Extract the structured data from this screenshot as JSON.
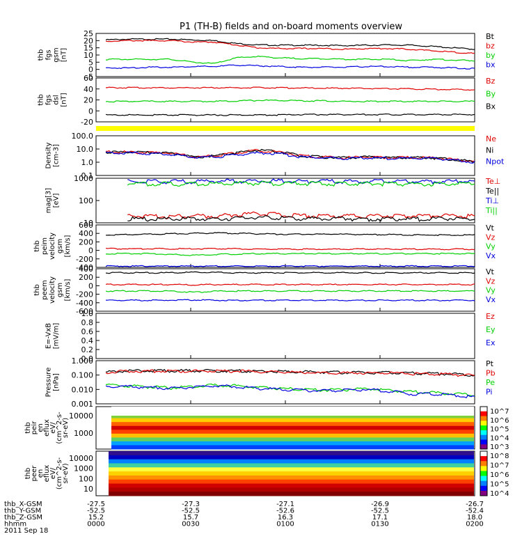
{
  "title": "P1 (TH-B) fields and on-board moments overview",
  "colors": {
    "black": "#000000",
    "red": "#e00000",
    "green": "#00d000",
    "blue": "#0000e0",
    "yellow": "#ffff00"
  },
  "chart_data": {
    "type": "line",
    "x_ticks": [
      "0000",
      "0030",
      "0100",
      "0130",
      "0200"
    ],
    "panels": [
      {
        "id": "fgs-gsm",
        "ylabel": [
          "thb",
          "fgs",
          "gsm",
          "[nT]"
        ],
        "yticks": [
          "25",
          "20",
          "15",
          "10",
          "5",
          "0",
          "-5"
        ],
        "ylim": [
          -5,
          25
        ],
        "series": [
          {
            "name": "Bt",
            "color": "black",
            "values": [
              20.5,
              21,
              21,
              21,
              20.5,
              20,
              18,
              17,
              16.8,
              16.8,
              16.7,
              16.5,
              16.8,
              17,
              16.8,
              16,
              15,
              14
            ]
          },
          {
            "name": "bz",
            "color": "red",
            "values": [
              19.5,
              20,
              20,
              20,
              19,
              19,
              17,
              15,
              14.5,
              14.5,
              14.5,
              14,
              14.5,
              14.5,
              14,
              13,
              12,
              11
            ]
          },
          {
            "name": "by",
            "color": "green",
            "values": [
              7,
              7,
              7,
              7,
              5,
              4,
              8,
              9,
              8,
              7.5,
              7.5,
              7,
              7,
              7,
              6,
              7,
              6.5,
              6
            ]
          },
          {
            "name": "bx",
            "color": "blue",
            "values": [
              1,
              1,
              1.5,
              1.5,
              2,
              2,
              3,
              2.5,
              2,
              1.5,
              1.5,
              1.5,
              2,
              2,
              1.5,
              1.5,
              1,
              0.5
            ]
          }
        ]
      },
      {
        "id": "fgs-dsl",
        "ylabel": [
          "thb",
          "fgs",
          "dsl",
          "[nT]"
        ],
        "yticks": [
          "60",
          "40",
          "20",
          "0",
          "-20"
        ],
        "ylim": [
          -30,
          60
        ],
        "series": [
          {
            "name": "Bz",
            "color": "red",
            "values": [
              40,
              40,
              40,
              40,
              40,
              40,
              40,
              40,
              40,
              39.5,
              39,
              39,
              38.5,
              38,
              37.5,
              37,
              36.5,
              36
            ]
          },
          {
            "name": "By",
            "color": "green",
            "values": [
              12,
              12,
              12,
              12,
              12,
              12,
              13,
              14,
              14,
              13,
              13,
              12,
              12,
              12,
              12,
              12,
              12,
              12
            ]
          },
          {
            "name": "Bx",
            "color": "black",
            "values": [
              -16,
              -16,
              -16,
              -16,
              -16,
              -16,
              -16,
              -16,
              -16,
              -15,
              -15,
              -15,
              -15,
              -15,
              -15,
              -15,
              -15,
              -15
            ]
          }
        ]
      },
      {
        "id": "density",
        "ylabel": [
          "Density",
          "[cm-3]"
        ],
        "yticks": [
          "100.0",
          "10.0",
          "1.0",
          "0.1"
        ],
        "ylim": [
          0.1,
          100
        ],
        "log": true,
        "series": [
          {
            "name": "Ne",
            "color": "red",
            "values": [
              6,
              6,
              5.5,
              5,
              2.5,
              3,
              5,
              8,
              6,
              3,
              2.5,
              2.2,
              2.5,
              2.2,
              2.3,
              2.2,
              1.6,
              1.1
            ]
          },
          {
            "name": "Ni",
            "color": "black",
            "values": [
              6,
              6,
              5.5,
              5,
              2.5,
              3,
              5,
              8,
              6,
              3,
              2.5,
              2.2,
              2.5,
              2.2,
              2.3,
              2.2,
              1.6,
              1.1
            ]
          },
          {
            "name": "Npot",
            "color": "blue",
            "values": [
              5,
              5,
              4.5,
              4,
              2.5,
              2.5,
              3.5,
              5,
              4.5,
              2.5,
              2.2,
              2,
              2.2,
              2,
              2,
              2,
              1.5,
              1
            ]
          }
        ]
      },
      {
        "id": "temp",
        "ylabel": [
          "mag[3]",
          "[eV]"
        ],
        "yticks": [
          "1000",
          "100",
          "10"
        ],
        "ylim": [
          8,
          1200
        ],
        "log": true,
        "series": [
          {
            "name": "Te⊥",
            "color": "red",
            "values": [
              null,
              18,
              17,
              16,
              18,
              17,
              20,
              24,
              20,
              18,
              18,
              18,
              17,
              18,
              17,
              18,
              18,
              17
            ]
          },
          {
            "name": "Te||",
            "color": "black",
            "values": [
              null,
              13,
              12,
              12,
              13,
              12,
              14,
              15,
              14,
              13,
              13,
              13,
              12,
              13,
              12,
              13,
              13,
              12
            ]
          },
          {
            "name": "Ti⊥",
            "color": "blue",
            "values": [
              null,
              850,
              850,
              850,
              850,
              860,
              880,
              900,
              880,
              870,
              860,
              860,
              850,
              860,
              850,
              850,
              850,
              850
            ]
          },
          {
            "name": "Ti||",
            "color": "green",
            "values": [
              null,
              650,
              650,
              650,
              650,
              660,
              680,
              700,
              680,
              670,
              660,
              650,
              650,
              650,
              650,
              650,
              650,
              650
            ]
          }
        ]
      },
      {
        "id": "peim-vel",
        "ylabel": [
          "thb",
          "peim",
          "velocity",
          "gsm",
          "[km/s]"
        ],
        "yticks": [
          "600",
          "400",
          "200",
          "0",
          "-200",
          "-400"
        ],
        "ylim": [
          -400,
          650
        ],
        "series": [
          {
            "name": "Vt",
            "color": "black",
            "values": [
              400,
              410,
              420,
              430,
              440,
              450,
              440,
              430,
              420,
              420,
              420,
              420,
              410,
              410,
              400,
              400,
              400,
              400
            ]
          },
          {
            "name": "Vz",
            "color": "red",
            "values": [
              60,
              60,
              60,
              60,
              60,
              60,
              60,
              50,
              50,
              50,
              50,
              50,
              50,
              50,
              50,
              50,
              50,
              50
            ]
          },
          {
            "name": "Vy",
            "color": "green",
            "values": [
              -60,
              -60,
              -60,
              -80,
              -100,
              -80,
              -70,
              -60,
              -60,
              -60,
              -60,
              -60,
              -60,
              -60,
              -60,
              -60,
              -60,
              -60
            ]
          },
          {
            "name": "Vx",
            "color": "blue",
            "values": [
              -370,
              -370,
              -370,
              -370,
              -370,
              -370,
              -370,
              -370,
              -370,
              -370,
              -370,
              -370,
              -370,
              -370,
              -370,
              -370,
              -370,
              -370
            ]
          }
        ]
      },
      {
        "id": "peem-vel",
        "ylabel": [
          "thb",
          "peem",
          "velocity",
          "gsm",
          "[km/s]"
        ],
        "yticks": [
          "400",
          "200",
          "0",
          "-200",
          "-400",
          "-600"
        ],
        "ylim": [
          -600,
          450
        ],
        "series": [
          {
            "name": "Vt",
            "color": "black",
            "values": [
              350,
              350,
              350,
              350,
              360,
              360,
              350,
              350,
              350,
              350,
              350,
              350,
              350,
              350,
              350,
              350,
              350,
              350
            ]
          },
          {
            "name": "Vz",
            "color": "red",
            "values": [
              60,
              60,
              60,
              60,
              50,
              60,
              60,
              60,
              60,
              60,
              60,
              60,
              60,
              60,
              60,
              60,
              60,
              60
            ]
          },
          {
            "name": "Vy",
            "color": "green",
            "values": [
              -100,
              -100,
              -100,
              -100,
              -130,
              -110,
              -100,
              -100,
              -100,
              -100,
              -100,
              -100,
              -100,
              -100,
              -100,
              -100,
              -100,
              -100
            ]
          },
          {
            "name": "Vx",
            "color": "blue",
            "values": [
              -330,
              -330,
              -330,
              -330,
              -320,
              -330,
              -330,
              -330,
              -330,
              -330,
              -330,
              -330,
              -330,
              -330,
              -330,
              -330,
              -330,
              -330
            ]
          }
        ]
      },
      {
        "id": "efield",
        "ylabel": [
          "E=-VxB",
          "[mV/m]"
        ],
        "yticks": [
          "1.0",
          "0.8",
          "0.6",
          "0.4",
          "0.2",
          "0.0"
        ],
        "ylim": [
          0,
          1
        ],
        "series": [
          {
            "name": "Ez",
            "color": "red",
            "values": []
          },
          {
            "name": "Ey",
            "color": "green",
            "values": []
          },
          {
            "name": "Ex",
            "color": "blue",
            "values": []
          }
        ]
      },
      {
        "id": "pressure",
        "ylabel": [
          "Pressure",
          "[nPa]"
        ],
        "yticks": [
          "1.000",
          "0.100",
          "0.010",
          "0.001"
        ],
        "ylim": [
          0.001,
          1
        ],
        "log": true,
        "series": [
          {
            "name": "Pt",
            "color": "black",
            "values": [
              0.16,
              0.2,
              0.2,
              0.2,
              0.2,
              0.2,
              0.2,
              0.19,
              0.18,
              0.17,
              0.16,
              0.15,
              0.15,
              0.15,
              0.14,
              0.13,
              0.12,
              0.1
            ]
          },
          {
            "name": "Pb",
            "color": "red",
            "values": [
              0.15,
              0.19,
              0.19,
              0.19,
              0.19,
              0.19,
              0.19,
              0.17,
              0.16,
              0.15,
              0.14,
              0.14,
              0.14,
              0.14,
              0.13,
              0.12,
              0.11,
              0.095
            ]
          },
          {
            "name": "Pe",
            "color": "green",
            "values": [
              0.02,
              0.018,
              0.015,
              0.013,
              0.016,
              0.02,
              0.018,
              0.014,
              0.012,
              0.01,
              0.009,
              0.01,
              0.011,
              0.009,
              0.007,
              0.006,
              0.005,
              0.004
            ]
          },
          {
            "name": "Pi",
            "color": "blue",
            "values": [
              0.018,
              0.016,
              0.014,
              0.012,
              0.015,
              0.018,
              0.016,
              0.012,
              0.01,
              0.009,
              0.008,
              0.009,
              0.01,
              0.008,
              0.005,
              0.005,
              0.004,
              0.003
            ]
          }
        ]
      }
    ],
    "spectrograms": [
      {
        "id": "peir",
        "ylabel": [
          "thb",
          "peir",
          "en",
          "eflux",
          "eV/",
          "(cm^2-s-",
          "sr-eV)"
        ],
        "yticks": [
          "10000",
          "1000"
        ],
        "colorbar_ticks": [
          "10^7",
          "10^6",
          "10^5",
          "10^4",
          "10^3"
        ]
      },
      {
        "id": "peer",
        "ylabel": [
          "thb",
          "peer",
          "en",
          "eflux",
          "eV/",
          "(cm^2-s-",
          "sr-eV)"
        ],
        "yticks": [
          "10000",
          "1000",
          "100",
          "10"
        ],
        "colorbar_ticks": [
          "10^8",
          "10^7",
          "10^6",
          "10^5",
          "10^4"
        ]
      }
    ],
    "ephemeris": {
      "labels": [
        "thb_X-GSM",
        "thb_Y-GSM",
        "thb_Z-GSM",
        "hhmm",
        "2011 Sep 18"
      ],
      "rows": [
        [
          "-27.5",
          "-27.3",
          "-27.1",
          "-26.9",
          "-26.7"
        ],
        [
          "-52.5",
          "-52.5",
          "-52.6",
          "-52.5",
          "-52.4"
        ],
        [
          "15.2",
          "15.7",
          "16.3",
          "17.1",
          "18.0"
        ],
        [
          "0000",
          "0030",
          "0100",
          "0130",
          "0200"
        ]
      ]
    }
  }
}
